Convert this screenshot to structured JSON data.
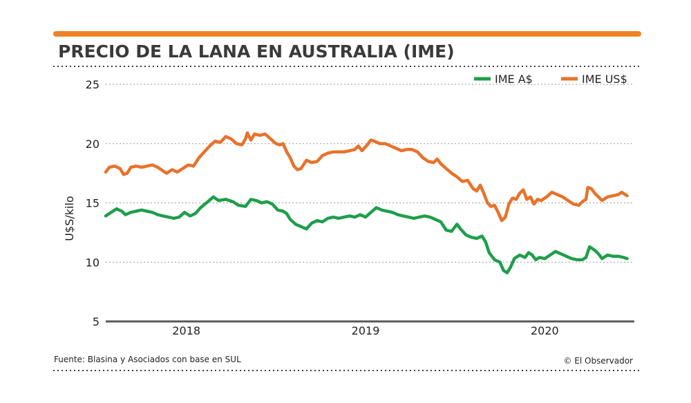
{
  "colors": {
    "accent_bar": "#ee8228",
    "ime_a": "#1f9e4b",
    "ime_us": "#e8722a",
    "grid": "#9a9a9a",
    "axis": "#595959"
  },
  "chart_data": {
    "type": "line",
    "title": "PRECIO DE LA LANA EN AUSTRALIA (IME)",
    "ylabel": "U$S/kilo",
    "ylim": [
      5,
      25
    ],
    "yticks": [
      "5",
      "10",
      "15",
      "20",
      "25"
    ],
    "xlim": [
      2017.55,
      2020.5
    ],
    "xticks": [
      {
        "label": "2018",
        "value": 2018.0
      },
      {
        "label": "2019",
        "value": 2019.0
      },
      {
        "label": "2020",
        "value": 2020.0
      }
    ],
    "grid": true,
    "legend_position": "top-right",
    "series": [
      {
        "name": "IME A$",
        "color": "#1f9e4b",
        "points": [
          [
            2017.55,
            13.9
          ],
          [
            2017.58,
            14.2
          ],
          [
            2017.61,
            14.5
          ],
          [
            2017.64,
            14.3
          ],
          [
            2017.66,
            14.0
          ],
          [
            2017.69,
            14.2
          ],
          [
            2017.72,
            14.3
          ],
          [
            2017.75,
            14.4
          ],
          [
            2017.78,
            14.3
          ],
          [
            2017.81,
            14.2
          ],
          [
            2017.84,
            14.0
          ],
          [
            2017.87,
            13.9
          ],
          [
            2017.9,
            13.8
          ],
          [
            2017.93,
            13.7
          ],
          [
            2017.96,
            13.8
          ],
          [
            2017.99,
            14.2
          ],
          [
            2018.02,
            13.9
          ],
          [
            2018.05,
            14.1
          ],
          [
            2018.08,
            14.6
          ],
          [
            2018.12,
            15.1
          ],
          [
            2018.15,
            15.5
          ],
          [
            2018.18,
            15.2
          ],
          [
            2018.22,
            15.3
          ],
          [
            2018.26,
            15.1
          ],
          [
            2018.29,
            14.8
          ],
          [
            2018.33,
            14.7
          ],
          [
            2018.36,
            15.3
          ],
          [
            2018.39,
            15.2
          ],
          [
            2018.42,
            15.0
          ],
          [
            2018.45,
            15.1
          ],
          [
            2018.48,
            14.9
          ],
          [
            2018.51,
            14.4
          ],
          [
            2018.54,
            14.3
          ],
          [
            2018.56,
            14.1
          ],
          [
            2018.58,
            13.6
          ],
          [
            2018.61,
            13.2
          ],
          [
            2018.64,
            13.0
          ],
          [
            2018.67,
            12.8
          ],
          [
            2018.7,
            13.3
          ],
          [
            2018.73,
            13.5
          ],
          [
            2018.76,
            13.4
          ],
          [
            2018.79,
            13.7
          ],
          [
            2018.82,
            13.8
          ],
          [
            2018.85,
            13.7
          ],
          [
            2018.88,
            13.8
          ],
          [
            2018.91,
            13.9
          ],
          [
            2018.94,
            13.8
          ],
          [
            2018.97,
            14.0
          ],
          [
            2019.0,
            13.8
          ],
          [
            2019.03,
            14.2
          ],
          [
            2019.06,
            14.6
          ],
          [
            2019.09,
            14.4
          ],
          [
            2019.12,
            14.3
          ],
          [
            2019.15,
            14.2
          ],
          [
            2019.18,
            14.0
          ],
          [
            2019.21,
            13.9
          ],
          [
            2019.24,
            13.8
          ],
          [
            2019.27,
            13.7
          ],
          [
            2019.3,
            13.8
          ],
          [
            2019.33,
            13.9
          ],
          [
            2019.36,
            13.8
          ],
          [
            2019.39,
            13.6
          ],
          [
            2019.42,
            13.4
          ],
          [
            2019.45,
            12.7
          ],
          [
            2019.48,
            12.6
          ],
          [
            2019.51,
            13.2
          ],
          [
            2019.53,
            12.8
          ],
          [
            2019.56,
            12.3
          ],
          [
            2019.59,
            12.1
          ],
          [
            2019.62,
            12.0
          ],
          [
            2019.65,
            12.2
          ],
          [
            2019.67,
            11.7
          ],
          [
            2019.69,
            10.8
          ],
          [
            2019.72,
            10.2
          ],
          [
            2019.75,
            10.0
          ],
          [
            2019.77,
            9.3
          ],
          [
            2019.79,
            9.1
          ],
          [
            2019.81,
            9.6
          ],
          [
            2019.83,
            10.3
          ],
          [
            2019.86,
            10.6
          ],
          [
            2019.89,
            10.4
          ],
          [
            2019.91,
            10.8
          ],
          [
            2019.93,
            10.6
          ],
          [
            2019.95,
            10.2
          ],
          [
            2019.97,
            10.4
          ],
          [
            2020.0,
            10.3
          ],
          [
            2020.03,
            10.6
          ],
          [
            2020.06,
            10.9
          ],
          [
            2020.09,
            10.7
          ],
          [
            2020.12,
            10.5
          ],
          [
            2020.15,
            10.3
          ],
          [
            2020.18,
            10.2
          ],
          [
            2020.21,
            10.2
          ],
          [
            2020.23,
            10.4
          ],
          [
            2020.25,
            11.3
          ],
          [
            2020.28,
            11.0
          ],
          [
            2020.3,
            10.7
          ],
          [
            2020.32,
            10.3
          ],
          [
            2020.35,
            10.6
          ],
          [
            2020.38,
            10.5
          ],
          [
            2020.41,
            10.5
          ],
          [
            2020.44,
            10.4
          ],
          [
            2020.46,
            10.3
          ]
        ]
      },
      {
        "name": "IME US$",
        "color": "#e8722a",
        "points": [
          [
            2017.55,
            17.6
          ],
          [
            2017.57,
            18.0
          ],
          [
            2017.6,
            18.1
          ],
          [
            2017.63,
            17.9
          ],
          [
            2017.65,
            17.4
          ],
          [
            2017.67,
            17.5
          ],
          [
            2017.69,
            18.0
          ],
          [
            2017.72,
            18.1
          ],
          [
            2017.75,
            18.0
          ],
          [
            2017.78,
            18.1
          ],
          [
            2017.81,
            18.2
          ],
          [
            2017.84,
            18.0
          ],
          [
            2017.87,
            17.7
          ],
          [
            2017.89,
            17.5
          ],
          [
            2017.92,
            17.8
          ],
          [
            2017.95,
            17.6
          ],
          [
            2017.98,
            17.9
          ],
          [
            2018.01,
            18.2
          ],
          [
            2018.04,
            18.1
          ],
          [
            2018.07,
            18.8
          ],
          [
            2018.1,
            19.3
          ],
          [
            2018.13,
            19.8
          ],
          [
            2018.16,
            20.2
          ],
          [
            2018.19,
            20.1
          ],
          [
            2018.22,
            20.6
          ],
          [
            2018.25,
            20.4
          ],
          [
            2018.28,
            20.0
          ],
          [
            2018.31,
            19.9
          ],
          [
            2018.33,
            20.4
          ],
          [
            2018.34,
            20.9
          ],
          [
            2018.36,
            20.3
          ],
          [
            2018.38,
            20.8
          ],
          [
            2018.41,
            20.7
          ],
          [
            2018.44,
            20.8
          ],
          [
            2018.47,
            20.4
          ],
          [
            2018.5,
            20.0
          ],
          [
            2018.52,
            19.9
          ],
          [
            2018.54,
            20.0
          ],
          [
            2018.56,
            19.3
          ],
          [
            2018.58,
            18.8
          ],
          [
            2018.6,
            18.1
          ],
          [
            2018.62,
            17.8
          ],
          [
            2018.64,
            17.9
          ],
          [
            2018.67,
            18.6
          ],
          [
            2018.7,
            18.4
          ],
          [
            2018.73,
            18.5
          ],
          [
            2018.76,
            19.0
          ],
          [
            2018.79,
            19.2
          ],
          [
            2018.82,
            19.3
          ],
          [
            2018.85,
            19.3
          ],
          [
            2018.88,
            19.3
          ],
          [
            2018.91,
            19.4
          ],
          [
            2018.94,
            19.5
          ],
          [
            2018.96,
            19.8
          ],
          [
            2018.98,
            19.4
          ],
          [
            2019.01,
            19.9
          ],
          [
            2019.03,
            20.3
          ],
          [
            2019.05,
            20.2
          ],
          [
            2019.08,
            20.0
          ],
          [
            2019.11,
            20.0
          ],
          [
            2019.14,
            19.8
          ],
          [
            2019.17,
            19.6
          ],
          [
            2019.2,
            19.4
          ],
          [
            2019.23,
            19.5
          ],
          [
            2019.26,
            19.5
          ],
          [
            2019.29,
            19.3
          ],
          [
            2019.32,
            18.8
          ],
          [
            2019.35,
            18.5
          ],
          [
            2019.38,
            18.4
          ],
          [
            2019.4,
            18.7
          ],
          [
            2019.42,
            18.3
          ],
          [
            2019.45,
            17.9
          ],
          [
            2019.48,
            17.5
          ],
          [
            2019.51,
            17.2
          ],
          [
            2019.54,
            16.8
          ],
          [
            2019.57,
            16.9
          ],
          [
            2019.6,
            16.2
          ],
          [
            2019.62,
            16.0
          ],
          [
            2019.64,
            16.5
          ],
          [
            2019.66,
            15.8
          ],
          [
            2019.68,
            15.0
          ],
          [
            2019.7,
            14.7
          ],
          [
            2019.72,
            14.8
          ],
          [
            2019.74,
            14.2
          ],
          [
            2019.76,
            13.5
          ],
          [
            2019.78,
            13.8
          ],
          [
            2019.8,
            14.9
          ],
          [
            2019.82,
            15.4
          ],
          [
            2019.84,
            15.3
          ],
          [
            2019.86,
            15.8
          ],
          [
            2019.88,
            16.1
          ],
          [
            2019.9,
            15.3
          ],
          [
            2019.92,
            15.5
          ],
          [
            2019.94,
            14.9
          ],
          [
            2019.96,
            15.3
          ],
          [
            2019.98,
            15.2
          ],
          [
            2020.01,
            15.5
          ],
          [
            2020.04,
            15.9
          ],
          [
            2020.07,
            15.7
          ],
          [
            2020.1,
            15.5
          ],
          [
            2020.13,
            15.2
          ],
          [
            2020.16,
            14.9
          ],
          [
            2020.19,
            14.8
          ],
          [
            2020.21,
            15.1
          ],
          [
            2020.23,
            15.3
          ],
          [
            2020.24,
            16.3
          ],
          [
            2020.26,
            16.2
          ],
          [
            2020.28,
            15.8
          ],
          [
            2020.3,
            15.5
          ],
          [
            2020.32,
            15.2
          ],
          [
            2020.35,
            15.5
          ],
          [
            2020.38,
            15.6
          ],
          [
            2020.41,
            15.7
          ],
          [
            2020.43,
            15.9
          ],
          [
            2020.46,
            15.6
          ]
        ]
      }
    ]
  },
  "footer": {
    "source": "Fuente: Blasina y Asociados con base en SUL",
    "credit": "© El Observador"
  }
}
